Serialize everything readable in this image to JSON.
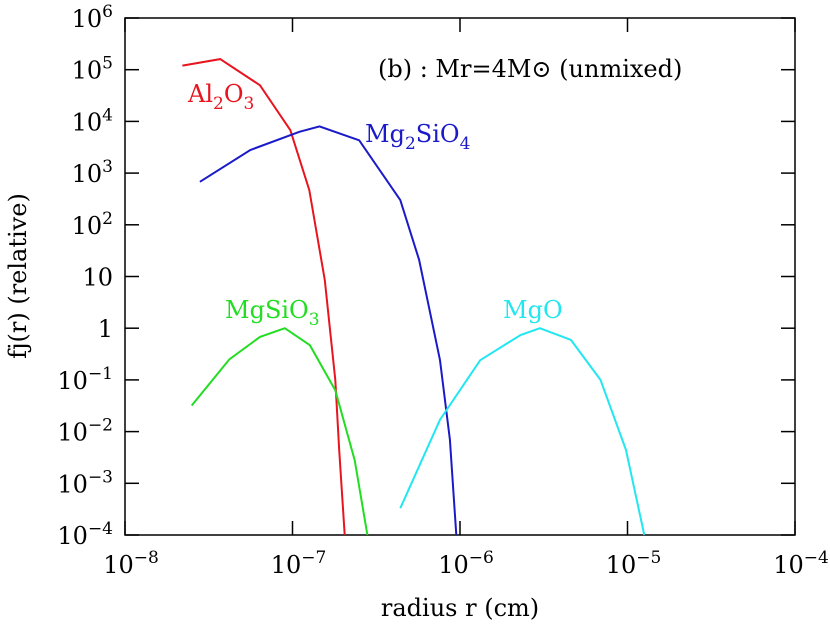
{
  "chart_data": {
    "type": "line",
    "log_x": true,
    "log_y": true,
    "annotation": "(b) : Mr=4M⊙ (unmixed)",
    "x_label": "radius r (cm)",
    "y_label": "fj(r) (relative)",
    "xlim": [
      1e-08,
      0.0001
    ],
    "ylim": [
      0.0001,
      1000000.0
    ],
    "xticks": [
      {
        "value": 1e-08,
        "label": "10",
        "exponent": "−8"
      },
      {
        "value": 1e-07,
        "label": "10",
        "exponent": "−7"
      },
      {
        "value": 1e-06,
        "label": "10",
        "exponent": "−6"
      },
      {
        "value": 1e-05,
        "label": "10",
        "exponent": "−5"
      },
      {
        "value": 0.0001,
        "label": "10",
        "exponent": "−4"
      }
    ],
    "yticks": [
      {
        "value": 0.0001,
        "label": "10",
        "exponent": "−4"
      },
      {
        "value": 0.001,
        "label": "10",
        "exponent": "−3"
      },
      {
        "value": 0.01,
        "label": "10",
        "exponent": "−2"
      },
      {
        "value": 0.1,
        "label": "10",
        "exponent": "−1"
      },
      1,
      10,
      {
        "value": 100,
        "label": "10",
        "exponent": "2"
      },
      {
        "value": 1000,
        "label": "10",
        "exponent": "3"
      },
      {
        "value": 10000,
        "label": "10",
        "exponent": "4"
      },
      {
        "value": 100000,
        "label": "10",
        "exponent": "5"
      },
      {
        "value": 1000000,
        "label": "10",
        "exponent": "6"
      }
    ],
    "series": [
      {
        "name": "Al2O3",
        "color": "#e8141e",
        "x": [
          2.2e-08,
          3.7e-08,
          6.4e-08,
          9.7e-08,
          1.26e-07,
          1.56e-07,
          1.8e-07,
          1.9e-07,
          2.05e-07
        ],
        "values": [
          120000,
          160000,
          50000,
          6800,
          470,
          8.5,
          0.1,
          0.0044,
          0.0001
        ]
      },
      {
        "name": "Mg2SiO4",
        "color": "#1a1ac8",
        "x": [
          2.8e-08,
          5.6e-08,
          1.1e-07,
          1.45e-07,
          2.5e-07,
          4.4e-07,
          5.7e-07,
          7.6e-07,
          8.7e-07,
          9.5e-07
        ],
        "values": [
          680,
          2800,
          6300,
          8000,
          4300,
          300,
          21,
          0.24,
          0.007,
          0.0001
        ]
      },
      {
        "name": "MgSiO3",
        "color": "#22dd22",
        "x": [
          2.5e-08,
          4.2e-08,
          6.4e-08,
          9e-08,
          1.27e-07,
          1.8e-07,
          2.35e-07,
          2.8e-07
        ],
        "values": [
          0.032,
          0.25,
          0.68,
          1,
          0.47,
          0.063,
          0.0028,
          0.0001
        ]
      },
      {
        "name": "MgO",
        "color": "#22e6f0",
        "x": [
          4.4e-07,
          7.6e-07,
          1.32e-06,
          2.3e-06,
          3e-06,
          4.6e-06,
          6.9e-06,
          9.8e-06,
          1.26e-05
        ],
        "values": [
          0.00033,
          0.017,
          0.24,
          0.74,
          1,
          0.59,
          0.1,
          0.0044,
          0.0001
        ]
      }
    ]
  }
}
